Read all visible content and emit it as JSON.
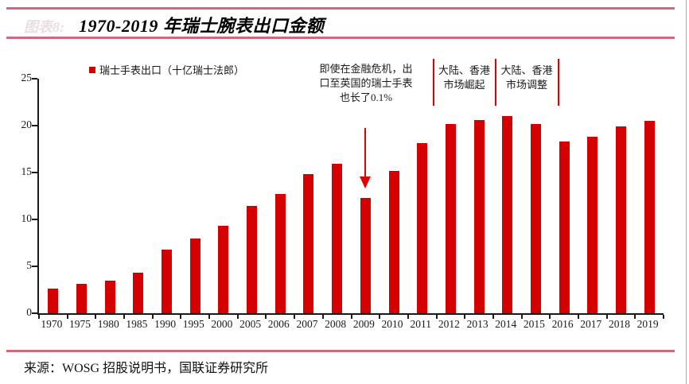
{
  "header": {
    "figure_label": "图表8:",
    "title": "1970-2019 年瑞士腕表出口金额"
  },
  "legend": {
    "label": "瑞士手表出口（十亿瑞士法郎）",
    "swatch_color": "#d40000"
  },
  "annotations": {
    "crisis_note": "即使在金融危机，出\n口至英国的瑞士手表\n也长了0.1%",
    "rise_note": "大陆、香港\n市场崛起",
    "adjust_note": "大陆、香港\n市场调整"
  },
  "chart_data": {
    "type": "bar",
    "title": "1970-2019 年瑞士腕表出口金额",
    "series_name": "瑞士手表出口（十亿瑞士法郎）",
    "categories": [
      "1970",
      "1975",
      "1980",
      "1985",
      "1990",
      "1995",
      "2000",
      "2005",
      "2006",
      "2007",
      "2008",
      "2009",
      "2010",
      "2011",
      "2012",
      "2013",
      "2014",
      "2015",
      "2016",
      "2017",
      "2018",
      "2019"
    ],
    "values": [
      2.6,
      3.1,
      3.5,
      4.3,
      6.8,
      8.0,
      9.3,
      11.4,
      12.7,
      14.8,
      15.9,
      12.3,
      15.2,
      18.1,
      20.2,
      20.6,
      21.0,
      20.2,
      18.3,
      18.8,
      19.9,
      20.5
    ],
    "xlabel": "",
    "ylabel": "",
    "ylim": [
      0,
      25
    ],
    "yticks": [
      0,
      5,
      10,
      15,
      20,
      25
    ],
    "grid": false,
    "legend_position": "top-left",
    "bar_color": "#d40000",
    "annotation_divider_years": [
      "2011/2012",
      "2013/2014",
      "2015/2016"
    ]
  },
  "footer": {
    "source": "来源：WOSG 招股说明书，国联证券研究所"
  },
  "colors": {
    "bar_red": "#d40000",
    "annotation_red": "#e00000",
    "rule_pink": "#d0687e",
    "axis_black": "#1a1a1a"
  }
}
